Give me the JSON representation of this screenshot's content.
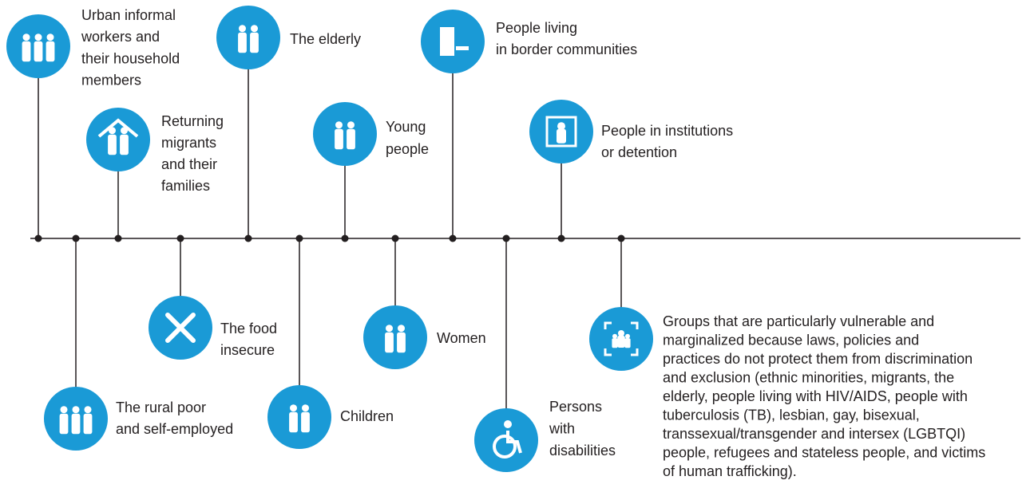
{
  "nodes": [
    {
      "lines": [
        "Urban informal",
        "workers and",
        "their household",
        "members"
      ]
    },
    {
      "lines": [
        "Returning",
        "migrants",
        "and their",
        "families"
      ]
    },
    {
      "lines": [
        "The elderly"
      ]
    },
    {
      "lines": [
        "Young",
        "people"
      ]
    },
    {
      "lines": [
        "People living",
        "in border communities"
      ]
    },
    {
      "lines": [
        "People in institutions",
        "or detention"
      ]
    },
    {
      "lines": [
        "The rural poor",
        "and self-employed"
      ]
    },
    {
      "lines": [
        "The food",
        "insecure"
      ]
    },
    {
      "lines": [
        "Children"
      ]
    },
    {
      "lines": [
        "Women"
      ]
    },
    {
      "lines": [
        "Persons",
        "with",
        "disabilities"
      ]
    },
    {
      "lines": [
        "Groups that are particularly vulnerable and",
        "marginalized because laws, policies and",
        "practices do not protect them from discrimination",
        "and exclusion (ethnic minorities, migrants, the",
        "elderly, people living with HIV/AIDS, people with",
        "tuberculosis (TB), lesbian, gay, bisexual,",
        "transsexual/transgender and intersex (LGBTQI)",
        "people, refugees and stateless people, and victims",
        "of human trafficking)."
      ]
    }
  ]
}
